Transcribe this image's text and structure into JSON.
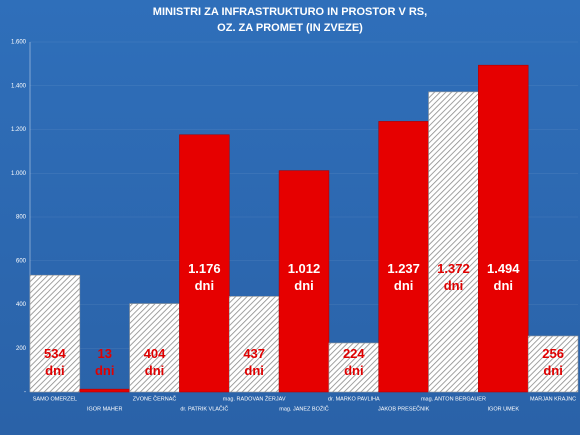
{
  "chart_data": {
    "type": "bar",
    "title": [
      "MINISTRI ZA INFRASTRUKTURO IN PROSTOR V RS,",
      "OZ. ZA PROMET (IN ZVEZE)"
    ],
    "categories": [
      "SAMO OMERZEL",
      "IGOR MAHER",
      "ZVONE ČERNAČ",
      "dr. PATRIK VLAČIČ",
      "mag. RADOVAN ŽERJAV",
      "mag. JANEZ BOŽIČ",
      "dr. MARKO PAVLIHA",
      "JAKOB PRESEČNIK",
      "mag. ANTON BERGAUER",
      "IGOR UMEK",
      "MARJAN KRAJNC"
    ],
    "values": [
      534,
      13,
      404,
      1176,
      437,
      1012,
      224,
      1237,
      1372,
      1494,
      256
    ],
    "value_labels": [
      "534 dni",
      "13 dni",
      "404 dni",
      "1.176 dni",
      "437 dni",
      "1.012 dni",
      "224 dni",
      "1.237 dni",
      "1.372 dni",
      "1.494 dni",
      "256 dni"
    ],
    "colors": [
      "#d9d9d9",
      "#e60000",
      "#d9d9d9",
      "#e60000",
      "#d9d9d9",
      "#e60000",
      "#d9d9d9",
      "#e60000",
      "#d9d9d9",
      "#e60000",
      "#d9d9d9"
    ],
    "hatch_color": "#d9d9d9",
    "ylim": [
      0,
      1600
    ],
    "yticks": [
      {
        "value": 0,
        "label": "-"
      },
      200,
      400,
      600,
      800,
      {
        "value": 1000,
        "label": "1.000"
      },
      {
        "value": 1200,
        "label": "1.200"
      },
      {
        "value": 1400,
        "label": "1.400"
      },
      {
        "value": 1600,
        "label": "1.600"
      }
    ],
    "grid": true
  }
}
